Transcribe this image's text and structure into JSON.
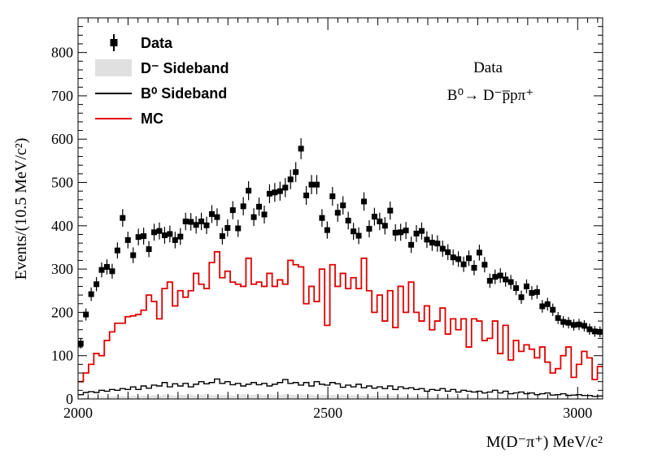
{
  "chart_data": {
    "type": "histogram",
    "title": "",
    "xlabel": "M(D⁻π⁺) MeV/c²",
    "ylabel": "Events/(10.5 MeV/c²)",
    "xlim": [
      2000,
      3050
    ],
    "ylim": [
      0,
      880
    ],
    "x_ticks": [
      2000,
      2500,
      3000
    ],
    "y_ticks": [
      0,
      100,
      200,
      300,
      400,
      500,
      600,
      700,
      800
    ],
    "grid": false,
    "legend_position": "top-left",
    "annotations": [
      "Data",
      "B⁰→ D⁻p̅pπ⁺"
    ],
    "colors": {
      "data": "#000000",
      "mc": "#e00000",
      "b0_sideband": "#000000",
      "d_sideband": "#cccccc"
    },
    "series": [
      {
        "name": "Data",
        "style": "points-with-errors",
        "values": [
          128,
          195,
          242,
          265,
          298,
          305,
          295,
          343,
          418,
          367,
          332,
          374,
          376,
          346,
          385,
          388,
          378,
          381,
          367,
          375,
          410,
          409,
          402,
          410,
          401,
          427,
          420,
          376,
          395,
          436,
          394,
          445,
          481,
          420,
          444,
          426,
          474,
          477,
          480,
          488,
          507,
          524,
          578,
          470,
          495,
          495,
          418,
          390,
          468,
          430,
          447,
          412,
          387,
          377,
          456,
          393,
          421,
          410,
          400,
          435,
          384,
          385,
          389,
          356,
          382,
          388,
          368,
          361,
          359,
          347,
          339,
          327,
          323,
          311,
          325,
          303,
          338,
          310,
          273,
          282,
          285,
          276,
          270,
          256,
          235,
          260,
          245,
          247,
          214,
          219,
          206,
          187,
          178,
          176,
          171,
          172,
          169,
          161,
          156,
          155
        ]
      },
      {
        "name": "MC",
        "style": "step",
        "values": [
          40,
          60,
          80,
          105,
          100,
          135,
          155,
          175,
          175,
          190,
          192,
          195,
          205,
          240,
          225,
          185,
          255,
          270,
          215,
          250,
          235,
          250,
          290,
          265,
          255,
          315,
          340,
          280,
          295,
          270,
          265,
          260,
          325,
          265,
          270,
          260,
          290,
          260,
          275,
          265,
          320,
          310,
          305,
          220,
          260,
          225,
          300,
          170,
          310,
          260,
          290,
          255,
          280,
          255,
          325,
          250,
          200,
          240,
          180,
          250,
          165,
          260,
          200,
          270,
          200,
          180,
          215,
          160,
          180,
          210,
          150,
          185,
          160,
          185,
          120,
          185,
          180,
          135,
          140,
          180,
          105,
          170,
          90,
          135,
          110,
          125,
          115,
          95,
          120,
          85,
          60,
          70,
          100,
          120,
          50,
          80,
          110,
          95,
          45,
          75
        ]
      },
      {
        "name": "B⁰ Sideband",
        "style": "step",
        "values": [
          10,
          15,
          17,
          15,
          20,
          18,
          22,
          20,
          24,
          22,
          28,
          22,
          30,
          25,
          32,
          30,
          38,
          28,
          35,
          30,
          36,
          28,
          34,
          40,
          35,
          38,
          46,
          36,
          40,
          33,
          36,
          30,
          34,
          38,
          33,
          36,
          30,
          34,
          38,
          45,
          36,
          38,
          32,
          38,
          30,
          40,
          34,
          32,
          38,
          35,
          27,
          32,
          28,
          34,
          26,
          30,
          25,
          28,
          24,
          30,
          22,
          28,
          24,
          26,
          22,
          24,
          18,
          22,
          20,
          24,
          18,
          22,
          16,
          20,
          18,
          16,
          18,
          14,
          16,
          20,
          14,
          18,
          12,
          14,
          16,
          12,
          14,
          10,
          12,
          14,
          9,
          10,
          12,
          8,
          9,
          10,
          8,
          8,
          6,
          7
        ]
      },
      {
        "name": "D⁻ Sideband",
        "style": "filled",
        "values": [
          2,
          4,
          4,
          5,
          6,
          5,
          6,
          7,
          7,
          6,
          8,
          6,
          8,
          7,
          9,
          8,
          10,
          9,
          8,
          10,
          9,
          10,
          8,
          10,
          11,
          9,
          10,
          9,
          10,
          8,
          10,
          11,
          9,
          10,
          10,
          9,
          10,
          9,
          10,
          11,
          10,
          9,
          10,
          9,
          10,
          8,
          9,
          10,
          9,
          8,
          9,
          8,
          9,
          8,
          8,
          7,
          8,
          7,
          8,
          7,
          7,
          6,
          7,
          6,
          6,
          7,
          6,
          5,
          6,
          5,
          5,
          6,
          5,
          4,
          5,
          4,
          4,
          5,
          4,
          3,
          4,
          3,
          4,
          3,
          3,
          4,
          3,
          2,
          3,
          3,
          2,
          2,
          3,
          2,
          2,
          2,
          1,
          2,
          1,
          1
        ]
      }
    ]
  },
  "legend": {
    "items": [
      {
        "label": "Data"
      },
      {
        "label": "D⁻ Sideband"
      },
      {
        "label": "B⁰ Sideband"
      },
      {
        "label": "MC"
      }
    ]
  }
}
